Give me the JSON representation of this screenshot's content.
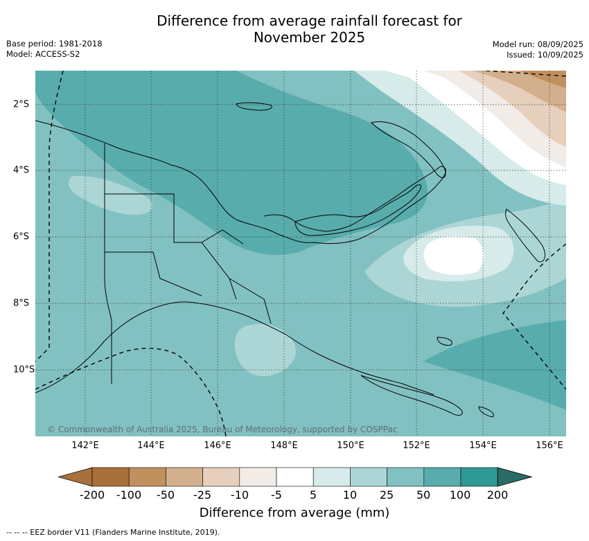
{
  "title_line1": "Difference from average rainfall forecast for",
  "title_line2": "November 2025",
  "base_period": "Base period: 1981-2018",
  "model": "Model: ACCESS-S2",
  "model_run": "Model run: 08/09/2025",
  "issued": "Issued: 10/09/2025",
  "lon_ticks": [
    "142°E",
    "144°E",
    "146°E",
    "148°E",
    "150°E",
    "152°E",
    "154°E",
    "156°E"
  ],
  "lat_ticks": [
    "2°S",
    "4°S",
    "6°S",
    "8°S",
    "10°S"
  ],
  "copyright": "© Commonwealth of Australia 2025, Bureau of Meteorology, supported by COSPPac",
  "colorbar": {
    "label": "Difference from average (mm)",
    "ticks": [
      "-200",
      "-100",
      "-50",
      "-25",
      "-10",
      "-5",
      "5",
      "10",
      "25",
      "50",
      "100",
      "200"
    ],
    "colors": [
      "#a8703a",
      "#c1905f",
      "#d3b08d",
      "#e6d0bd",
      "#f2ece8",
      "#ffffff",
      "#d6ebea",
      "#acd6d6",
      "#82c1c1",
      "#58acac",
      "#2f9a94",
      "#2b6b66"
    ]
  },
  "eez_legend": "--  --  -- EEZ border V11 (Flanders Marine Institute, 2019)."
}
